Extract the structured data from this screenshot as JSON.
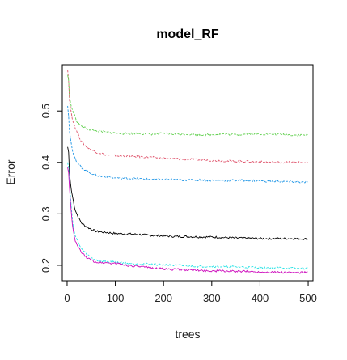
{
  "chart_data": {
    "type": "line",
    "title": "model_RF",
    "xlabel": "trees",
    "ylabel": "Error",
    "xlim": [
      -10,
      510
    ],
    "ylim": [
      0.17,
      0.59
    ],
    "xticks": [
      0,
      100,
      200,
      300,
      400,
      500
    ],
    "yticks": [
      0.2,
      0.3,
      0.4,
      0.5
    ],
    "x": [
      1,
      3,
      5,
      8,
      12,
      16,
      20,
      25,
      30,
      40,
      50,
      60,
      70,
      80,
      90,
      100,
      125,
      150,
      175,
      200,
      225,
      250,
      275,
      300,
      325,
      350,
      375,
      400,
      425,
      450,
      475,
      500
    ],
    "series": [
      {
        "color": "#000000",
        "style": "solid",
        "values": [
          0.43,
          0.42,
          0.38,
          0.35,
          0.33,
          0.31,
          0.3,
          0.29,
          0.282,
          0.275,
          0.27,
          0.266,
          0.265,
          0.264,
          0.263,
          0.262,
          0.261,
          0.26,
          0.258,
          0.257,
          0.256,
          0.256,
          0.255,
          0.255,
          0.254,
          0.253,
          0.253,
          0.252,
          0.252,
          0.252,
          0.252,
          0.251
        ]
      },
      {
        "color": "#DF536B",
        "style": "dashed",
        "values": [
          0.58,
          0.56,
          0.52,
          0.5,
          0.48,
          0.47,
          0.46,
          0.45,
          0.44,
          0.43,
          0.425,
          0.42,
          0.418,
          0.415,
          0.414,
          0.413,
          0.412,
          0.411,
          0.41,
          0.408,
          0.407,
          0.406,
          0.405,
          0.404,
          0.403,
          0.402,
          0.402,
          0.401,
          0.4,
          0.4,
          0.4,
          0.399
        ]
      },
      {
        "color": "#61D04F",
        "style": "dashed",
        "values": [
          0.57,
          0.56,
          0.53,
          0.51,
          0.5,
          0.49,
          0.48,
          0.475,
          0.47,
          0.466,
          0.463,
          0.461,
          0.46,
          0.459,
          0.458,
          0.457,
          0.456,
          0.456,
          0.455,
          0.456,
          0.455,
          0.455,
          0.454,
          0.454,
          0.455,
          0.454,
          0.455,
          0.455,
          0.455,
          0.454,
          0.453,
          0.453
        ]
      },
      {
        "color": "#2297E6",
        "style": "dashed",
        "values": [
          0.51,
          0.49,
          0.46,
          0.44,
          0.42,
          0.41,
          0.4,
          0.395,
          0.39,
          0.383,
          0.379,
          0.375,
          0.373,
          0.372,
          0.371,
          0.37,
          0.369,
          0.368,
          0.367,
          0.367,
          0.366,
          0.366,
          0.366,
          0.365,
          0.365,
          0.365,
          0.365,
          0.364,
          0.363,
          0.363,
          0.362,
          0.361
        ]
      },
      {
        "color": "#28E2E5",
        "style": "dashed",
        "values": [
          0.4,
          0.39,
          0.36,
          0.32,
          0.28,
          0.26,
          0.25,
          0.24,
          0.232,
          0.222,
          0.215,
          0.21,
          0.208,
          0.207,
          0.207,
          0.206,
          0.204,
          0.203,
          0.202,
          0.201,
          0.2,
          0.199,
          0.198,
          0.198,
          0.197,
          0.197,
          0.196,
          0.196,
          0.195,
          0.195,
          0.194,
          0.194
        ]
      },
      {
        "color": "#CD0BBC",
        "style": "solid",
        "values": [
          0.39,
          0.38,
          0.35,
          0.31,
          0.27,
          0.25,
          0.24,
          0.232,
          0.225,
          0.215,
          0.21,
          0.206,
          0.205,
          0.205,
          0.204,
          0.204,
          0.2,
          0.197,
          0.195,
          0.193,
          0.192,
          0.191,
          0.19,
          0.189,
          0.189,
          0.188,
          0.188,
          0.187,
          0.187,
          0.186,
          0.186,
          0.186
        ]
      }
    ]
  }
}
